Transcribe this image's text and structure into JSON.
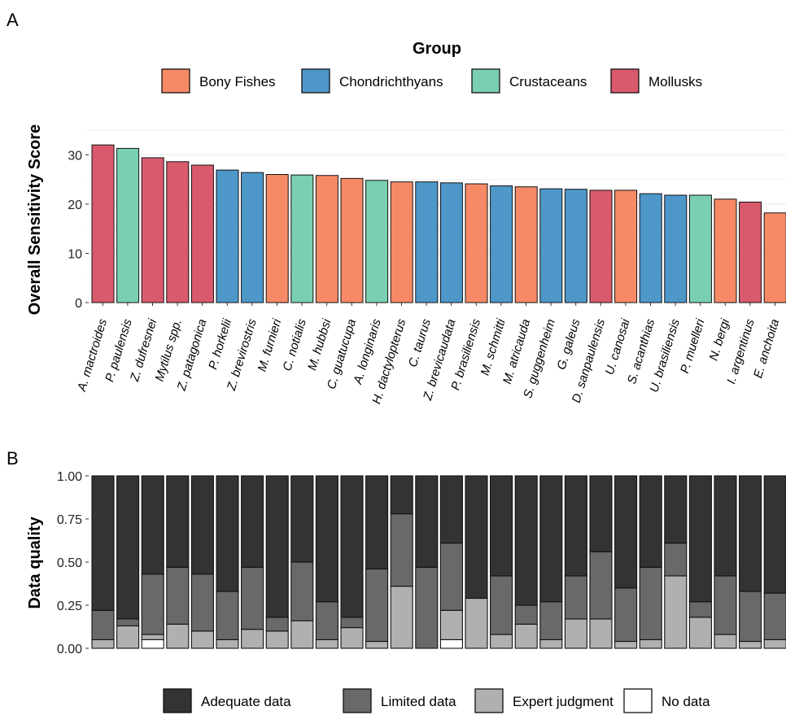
{
  "chart_data": [
    {
      "type": "bar",
      "panel_label": "A",
      "ylabel": "Overall Sensitivity Score",
      "xlabel": "",
      "ylim": [
        0,
        35
      ],
      "yticks": [
        "0",
        "10",
        "20",
        "30"
      ],
      "grid": true,
      "legend": {
        "title": "Group",
        "placement": "top",
        "entries": [
          {
            "name": "Bony Fishes",
            "color": "#F68A67"
          },
          {
            "name": "Chondrichthyans",
            "color": "#4E97C9"
          },
          {
            "name": "Crustaceans",
            "color": "#7ACFB0"
          },
          {
            "name": "Mollusks",
            "color": "#DA5A6D"
          }
        ]
      },
      "categories": [
        "A. mactroides",
        "P. paulensis",
        "Z. dufresnei",
        "Mytilus spp.",
        "Z. patagonica",
        "P. horkelii",
        "Z. brevirostris",
        "M. furnieri",
        "C. notialis",
        "M. hubbsi",
        "C. guatucupa",
        "A. longinaris",
        "H. dactylopterus",
        "C. taurus",
        "Z. brevicaudata",
        "P. brasiliensis",
        "M. schmitti",
        "M. atricauda",
        "S. guggenheim",
        "G. galeus",
        "D. sanpaulensis",
        "U. canosai",
        "S. acanthias",
        "U. brasiliensis",
        "P. muelleri",
        "N. bergi",
        "I. argentinus",
        "E. anchoita"
      ],
      "values": [
        32.0,
        31.3,
        29.4,
        28.6,
        27.9,
        26.9,
        26.4,
        26.0,
        25.9,
        25.8,
        25.2,
        24.8,
        24.5,
        24.5,
        24.3,
        24.1,
        23.7,
        23.5,
        23.1,
        23.0,
        22.8,
        22.8,
        22.1,
        21.8,
        21.8,
        21.0,
        20.4,
        18.2
      ],
      "groups": [
        "Mollusks",
        "Crustaceans",
        "Mollusks",
        "Mollusks",
        "Mollusks",
        "Chondrichthyans",
        "Chondrichthyans",
        "Bony Fishes",
        "Crustaceans",
        "Bony Fishes",
        "Bony Fishes",
        "Crustaceans",
        "Bony Fishes",
        "Chondrichthyans",
        "Chondrichthyans",
        "Bony Fishes",
        "Chondrichthyans",
        "Bony Fishes",
        "Chondrichthyans",
        "Chondrichthyans",
        "Mollusks",
        "Bony Fishes",
        "Chondrichthyans",
        "Chondrichthyans",
        "Crustaceans",
        "Bony Fishes",
        "Mollusks",
        "Bony Fishes"
      ]
    },
    {
      "type": "bar",
      "stacked": true,
      "panel_label": "B",
      "ylabel": "Data quality",
      "xlabel": "",
      "ylim": [
        0,
        1
      ],
      "yticks": [
        "0.00",
        "0.25",
        "0.50",
        "0.75",
        "1.00"
      ],
      "legend": {
        "placement": "bottom",
        "entries": [
          {
            "name": "Adequate data",
            "color": "#333333"
          },
          {
            "name": "Limited data",
            "color": "#696969"
          },
          {
            "name": "Expert judgment",
            "color": "#B0B0B0"
          },
          {
            "name": "No data",
            "color": "#FFFFFF"
          }
        ]
      },
      "series": [
        {
          "name": "No data",
          "values": [
            0,
            0,
            0.05,
            0,
            0,
            0,
            0,
            0,
            0,
            0,
            0,
            0,
            0,
            0,
            0.05,
            0,
            0,
            0,
            0,
            0,
            0,
            0,
            0,
            0,
            0,
            0,
            0,
            0
          ]
        },
        {
          "name": "Expert judgment",
          "values": [
            0.05,
            0.13,
            0.03,
            0.14,
            0.1,
            0.05,
            0.11,
            0.1,
            0.16,
            0.05,
            0.12,
            0.04,
            0.36,
            0,
            0.17,
            0.29,
            0.08,
            0.14,
            0.05,
            0.17,
            0.17,
            0.04,
            0.05,
            0.42,
            0.18,
            0.08,
            0.04,
            0.05
          ]
        },
        {
          "name": "Limited data",
          "values": [
            0.17,
            0.04,
            0.35,
            0.33,
            0.33,
            0.28,
            0.36,
            0.08,
            0.34,
            0.22,
            0.06,
            0.42,
            0.42,
            0.47,
            0.39,
            0,
            0.34,
            0.11,
            0.22,
            0.25,
            0.39,
            0.31,
            0.42,
            0.19,
            0.09,
            0.34,
            0.29,
            0.27
          ]
        },
        {
          "name": "Adequate data",
          "values": [
            0.78,
            0.83,
            0.57,
            0.53,
            0.57,
            0.67,
            0.53,
            0.82,
            0.5,
            0.73,
            0.82,
            0.54,
            0.22,
            0.53,
            0.39,
            0.71,
            0.58,
            0.75,
            0.73,
            0.58,
            0.44,
            0.65,
            0.53,
            0.39,
            0.73,
            0.58,
            0.67,
            0.68
          ]
        }
      ]
    }
  ]
}
